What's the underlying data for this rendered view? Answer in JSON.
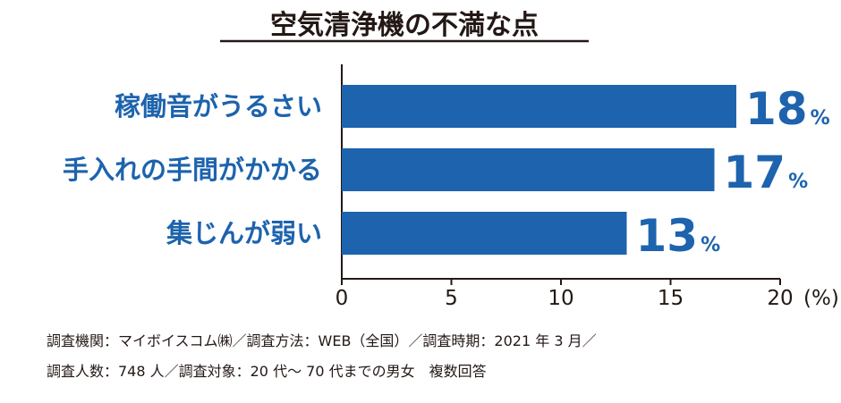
{
  "chart_data": {
    "type": "bar",
    "orientation": "horizontal",
    "title": "空気清浄機の不満な点",
    "categories": [
      "稼働音がうるさい",
      "手入れの手間がかかる",
      "集じんが弱い"
    ],
    "values": [
      18,
      17,
      13
    ],
    "value_unit": "%",
    "xlim": [
      0,
      20
    ],
    "x_ticks": [
      0,
      5,
      10,
      15,
      20
    ],
    "x_tick_labels": [
      "0",
      "5",
      "10",
      "15",
      "20"
    ],
    "x_unit_label": "(%)",
    "grid": false,
    "bar_color": "#1d63ad",
    "text_color": "#1d63ad"
  },
  "notes": [
    "調査機関：マイボイスコム㈱／調査方法：WEB（全国）／調査時期：2021 年 3 月／",
    "調査人数：748 人／調査対象：20 代〜 70 代までの男女　複数回答"
  ]
}
